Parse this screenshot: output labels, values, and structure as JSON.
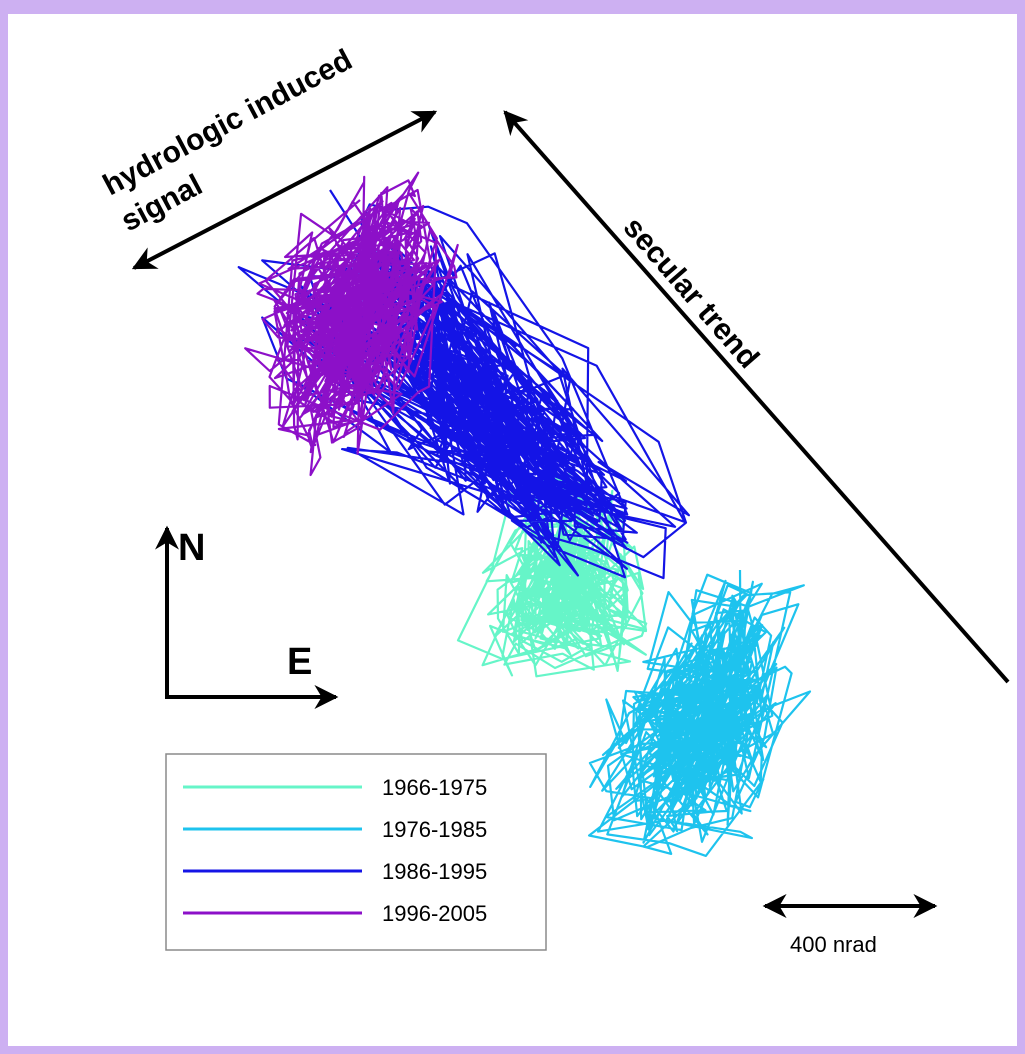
{
  "colors": {
    "page_background": "#cdb0f2",
    "panel": "#ffffff",
    "arrow": "#000000"
  },
  "annotations": {
    "hydro_line1": "hydrologic induced",
    "hydro_line2": "signal",
    "secular": "secular trend",
    "north": "N",
    "east": "E",
    "scale": "400 nrad"
  },
  "chart_data": {
    "type": "line",
    "xlabel": "",
    "ylabel": "",
    "scale_bar_nrad": 400,
    "legend_position": "bottom-left",
    "series": [
      {
        "name": "1966-1975",
        "color": "#66f5c8"
      },
      {
        "name": "1976-1985",
        "color": "#1ec3ee"
      },
      {
        "name": "1986-1995",
        "color": "#1414e6"
      },
      {
        "name": "1996-2005",
        "color": "#8c10c8"
      }
    ]
  }
}
